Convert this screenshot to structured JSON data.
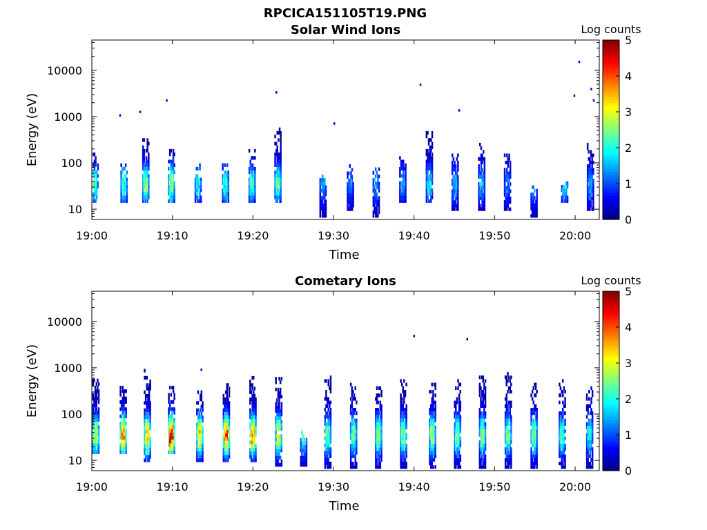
{
  "figure_title": "RPCICA151105T19.PNG",
  "chart_data": [
    {
      "type": "heatmap",
      "title": "Solar Wind Ions",
      "xlabel": "Time",
      "ylabel": "Energy (eV)",
      "x_ticks": [
        "19:00",
        "19:10",
        "19:20",
        "19:30",
        "19:40",
        "19:50",
        "20:00"
      ],
      "x_range": [
        "19:00",
        "20:03"
      ],
      "y_ticks": [
        "10",
        "100",
        "1000",
        "10000"
      ],
      "y_scale": "log",
      "y_range": [
        6,
        45000
      ],
      "colorbar": {
        "label": "Log counts",
        "ticks": [
          "0",
          "1",
          "2",
          "3",
          "4",
          "5"
        ],
        "range": [
          0,
          5
        ],
        "colormap": "jet"
      },
      "activity_bursts": [
        {
          "t": 0.3,
          "e_low": 15,
          "e_high": 180,
          "peak": 2.0
        },
        {
          "t": 3.9,
          "e_low": 15,
          "e_high": 90,
          "peak": 2.1
        },
        {
          "t": 6.6,
          "e_low": 15,
          "e_high": 400,
          "peak": 2.4
        },
        {
          "t": 9.8,
          "e_low": 15,
          "e_high": 200,
          "peak": 2.5
        },
        {
          "t": 13.1,
          "e_low": 15,
          "e_high": 90,
          "peak": 1.8
        },
        {
          "t": 16.5,
          "e_low": 15,
          "e_high": 100,
          "peak": 2.0
        },
        {
          "t": 19.8,
          "e_low": 15,
          "e_high": 200,
          "peak": 2.1
        },
        {
          "t": 23.0,
          "e_low": 15,
          "e_high": 600,
          "peak": 2.2
        },
        {
          "t": 28.6,
          "e_low": 6,
          "e_high": 60,
          "peak": 1.2
        },
        {
          "t": 32.0,
          "e_low": 10,
          "e_high": 100,
          "peak": 1.0
        },
        {
          "t": 35.2,
          "e_low": 6,
          "e_high": 80,
          "peak": 1.2
        },
        {
          "t": 38.5,
          "e_low": 15,
          "e_high": 150,
          "peak": 1.2
        },
        {
          "t": 41.8,
          "e_low": 15,
          "e_high": 500,
          "peak": 1.6
        },
        {
          "t": 45.0,
          "e_low": 10,
          "e_high": 150,
          "peak": 1.3
        },
        {
          "t": 48.3,
          "e_low": 10,
          "e_high": 250,
          "peak": 1.3
        },
        {
          "t": 51.5,
          "e_low": 10,
          "e_high": 150,
          "peak": 1.0
        },
        {
          "t": 54.8,
          "e_low": 6,
          "e_high": 30,
          "peak": 1.3
        },
        {
          "t": 58.6,
          "e_low": 15,
          "e_high": 40,
          "peak": 1.6
        },
        {
          "t": 61.8,
          "e_low": 10,
          "e_high": 250,
          "peak": 1.2
        }
      ],
      "isolated_points": [
        {
          "t": 3.4,
          "e": 1050
        },
        {
          "t": 5.9,
          "e": 1250
        },
        {
          "t": 9.2,
          "e": 2200
        },
        {
          "t": 22.8,
          "e": 3300
        },
        {
          "t": 30.0,
          "e": 700
        },
        {
          "t": 40.7,
          "e": 4800
        },
        {
          "t": 45.5,
          "e": 1350
        },
        {
          "t": 59.8,
          "e": 2800
        },
        {
          "t": 60.4,
          "e": 15000
        },
        {
          "t": 61.9,
          "e": 3900
        },
        {
          "t": 62.2,
          "e": 2200
        }
      ]
    },
    {
      "type": "heatmap",
      "title": "Cometary Ions",
      "xlabel": "Time",
      "ylabel": "Energy (eV)",
      "x_ticks": [
        "19:00",
        "19:10",
        "19:20",
        "19:30",
        "19:40",
        "19:50",
        "20:00"
      ],
      "x_range": [
        "19:00",
        "20:03"
      ],
      "y_ticks": [
        "10",
        "100",
        "1000",
        "10000"
      ],
      "y_scale": "log",
      "y_range": [
        6,
        45000
      ],
      "colorbar": {
        "label": "Log counts",
        "ticks": [
          "0",
          "1",
          "2",
          "3",
          "4",
          "5"
        ],
        "range": [
          0,
          5
        ],
        "colormap": "jet"
      },
      "activity_bursts": [
        {
          "t": 0.4,
          "e_low": 15,
          "e_high": 600,
          "peak": 2.9
        },
        {
          "t": 3.8,
          "e_low": 15,
          "e_high": 500,
          "peak": 3.8
        },
        {
          "t": 6.8,
          "e_low": 10,
          "e_high": 900,
          "peak": 3.3
        },
        {
          "t": 9.8,
          "e_low": 15,
          "e_high": 400,
          "peak": 4.3
        },
        {
          "t": 13.3,
          "e_low": 10,
          "e_high": 300,
          "peak": 3.3
        },
        {
          "t": 16.6,
          "e_low": 10,
          "e_high": 500,
          "peak": 3.9
        },
        {
          "t": 19.9,
          "e_low": 10,
          "e_high": 700,
          "peak": 3.7
        },
        {
          "t": 23.1,
          "e_low": 8,
          "e_high": 650,
          "peak": 3.0
        },
        {
          "t": 26.2,
          "e_low": 8,
          "e_high": 40,
          "peak": 2.0
        },
        {
          "t": 29.2,
          "e_low": 6,
          "e_high": 700,
          "peak": 2.3
        },
        {
          "t": 32.4,
          "e_low": 6,
          "e_high": 500,
          "peak": 2.3
        },
        {
          "t": 35.5,
          "e_low": 6,
          "e_high": 400,
          "peak": 2.5
        },
        {
          "t": 38.6,
          "e_low": 6,
          "e_high": 600,
          "peak": 2.4
        },
        {
          "t": 42.2,
          "e_low": 6,
          "e_high": 600,
          "peak": 2.6
        },
        {
          "t": 45.3,
          "e_low": 6,
          "e_high": 600,
          "peak": 2.4
        },
        {
          "t": 48.4,
          "e_low": 6,
          "e_high": 800,
          "peak": 2.4
        },
        {
          "t": 51.6,
          "e_low": 6,
          "e_high": 800,
          "peak": 2.3
        },
        {
          "t": 54.8,
          "e_low": 6,
          "e_high": 500,
          "peak": 2.4
        },
        {
          "t": 58.3,
          "e_low": 6,
          "e_high": 600,
          "peak": 2.1
        },
        {
          "t": 61.7,
          "e_low": 6,
          "e_high": 400,
          "peak": 1.8
        }
      ],
      "isolated_points": [
        {
          "t": 39.9,
          "e": 4800
        },
        {
          "t": 46.5,
          "e": 4100
        },
        {
          "t": 13.5,
          "e": 900
        }
      ]
    }
  ]
}
